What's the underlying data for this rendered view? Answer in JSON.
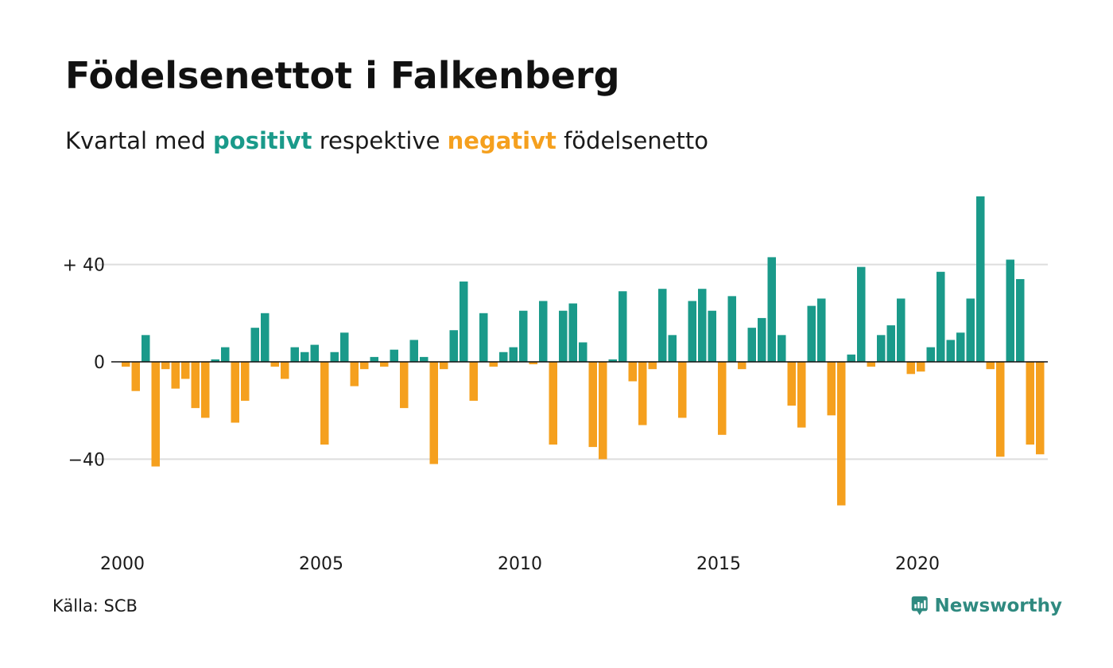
{
  "header": {
    "title": "Födelsenettot i Falkenberg",
    "subtitle_prefix": "Kvartal med ",
    "subtitle_positive": "positivt",
    "subtitle_middle": " respektive ",
    "subtitle_negative": "negativt",
    "subtitle_suffix": " födelsenetto"
  },
  "footer": {
    "source": "Källa: SCB",
    "brand": "Newsworthy"
  },
  "colors": {
    "positive": "#1a9a8a",
    "negative": "#f5a01e",
    "grid": "#dddddd",
    "brand": "#2f8a80"
  },
  "icons": {
    "brand_logo": "chart-speech-bubble-icon"
  },
  "chart_data": {
    "type": "bar",
    "title": "Födelsenettot i Falkenberg",
    "subtitle": "Kvartal med positivt respektive negativt födelsenetto",
    "xlabel": "",
    "ylabel": "",
    "x_start": 2000,
    "periods_per_year": 4,
    "ylim": [
      -74,
      70
    ],
    "yticks": [
      {
        "value": 40,
        "label": "+ 40"
      },
      {
        "value": 0,
        "label": "0"
      },
      {
        "value": -40,
        "label": "−40"
      }
    ],
    "xticks": [
      {
        "value": 2000,
        "label": "2000"
      },
      {
        "value": 2005,
        "label": "2005"
      },
      {
        "value": 2010,
        "label": "2010"
      },
      {
        "value": 2015,
        "label": "2015"
      },
      {
        "value": 2020,
        "label": "2020"
      }
    ],
    "grid": true,
    "values": [
      -2,
      -12,
      11,
      -43,
      -3,
      -11,
      -7,
      -19,
      -23,
      1,
      6,
      -25,
      -16,
      14,
      20,
      -2,
      -7,
      6,
      4,
      7,
      -34,
      4,
      12,
      -10,
      -3,
      2,
      -2,
      5,
      -19,
      9,
      2,
      -42,
      -3,
      13,
      33,
      -16,
      20,
      -2,
      4,
      6,
      21,
      -1,
      25,
      -34,
      21,
      24,
      8,
      -35,
      -40,
      1,
      29,
      -8,
      -26,
      -3,
      30,
      11,
      -23,
      25,
      30,
      21,
      -30,
      27,
      -3,
      14,
      18,
      43,
      11,
      -18,
      -27,
      23,
      26,
      -22,
      -59,
      3,
      39,
      -2,
      11,
      15,
      26,
      -5,
      -4,
      6,
      37,
      9,
      12,
      26,
      68,
      -3,
      -39,
      42,
      34,
      -34,
      -38
    ]
  }
}
